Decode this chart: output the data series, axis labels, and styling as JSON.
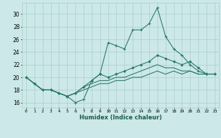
{
  "title": "",
  "xlabel": "Humidex (Indice chaleur)",
  "bg_color": "#cce8e8",
  "grid_color": "#aacccc",
  "line_color": "#2a7a6a",
  "x_ticks": [
    0,
    1,
    2,
    3,
    4,
    5,
    6,
    7,
    8,
    9,
    10,
    11,
    12,
    13,
    14,
    15,
    16,
    17,
    18,
    19,
    20,
    21,
    22,
    23
  ],
  "y_ticks": [
    16,
    18,
    20,
    22,
    24,
    26,
    28,
    30
  ],
  "xlim": [
    -0.5,
    23.5
  ],
  "ylim": [
    15.2,
    31.8
  ],
  "series": [
    [
      20.0,
      19.0,
      18.0,
      18.0,
      17.5,
      17.0,
      16.0,
      16.5,
      19.5,
      20.5,
      25.5,
      25.0,
      24.5,
      27.5,
      27.5,
      28.5,
      31.0,
      26.5,
      24.5,
      23.5,
      22.0,
      21.0,
      20.5,
      20.5
    ],
    [
      20.0,
      19.0,
      18.0,
      18.0,
      17.5,
      17.0,
      17.5,
      18.5,
      19.5,
      20.5,
      20.0,
      20.5,
      21.0,
      21.5,
      22.0,
      22.5,
      23.5,
      23.0,
      22.5,
      22.0,
      22.5,
      21.5,
      20.5,
      20.5
    ],
    [
      20.0,
      19.0,
      18.0,
      18.0,
      17.5,
      17.0,
      17.5,
      18.5,
      19.0,
      19.5,
      19.5,
      20.0,
      20.0,
      20.5,
      21.0,
      21.5,
      22.0,
      21.5,
      21.5,
      21.0,
      21.0,
      20.5,
      20.5,
      20.5
    ],
    [
      20.0,
      19.0,
      18.0,
      18.0,
      17.5,
      17.0,
      17.5,
      18.0,
      18.5,
      19.0,
      19.0,
      19.5,
      19.5,
      20.0,
      20.0,
      20.5,
      21.0,
      20.5,
      21.0,
      20.5,
      21.0,
      20.5,
      20.5,
      20.5
    ]
  ]
}
